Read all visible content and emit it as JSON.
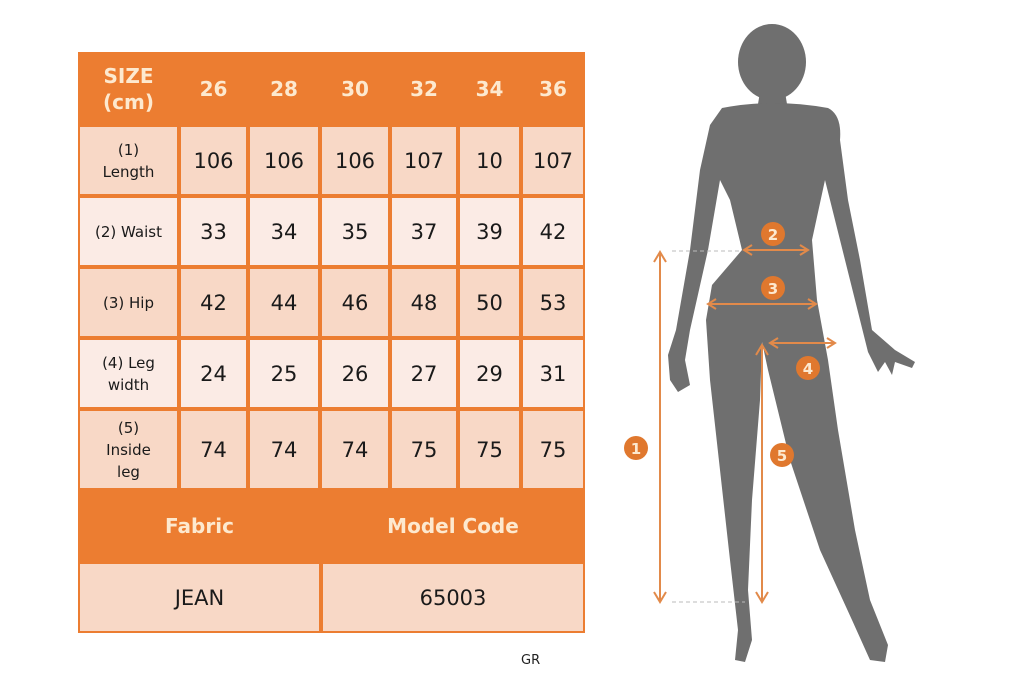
{
  "table": {
    "header": {
      "label_line1": "SIZE",
      "label_line2": "(cm)",
      "sizes": [
        "26",
        "28",
        "30",
        "32",
        "34",
        "36"
      ]
    },
    "rows": [
      {
        "label": "(1) Length",
        "values": [
          "106",
          "106",
          "106",
          "107",
          "10",
          "107"
        ]
      },
      {
        "label": "(2) Waist",
        "values": [
          "33",
          "34",
          "35",
          "37",
          "39",
          "42"
        ]
      },
      {
        "label": "(3) Hip",
        "values": [
          "42",
          "44",
          "46",
          "48",
          "50",
          "53"
        ]
      },
      {
        "label": "(4) Leg width",
        "values": [
          "24",
          "25",
          "26",
          "27",
          "29",
          "31"
        ]
      },
      {
        "label": "(5) Inside leg",
        "values": [
          "74",
          "74",
          "74",
          "75",
          "75",
          "75"
        ]
      }
    ],
    "footer": {
      "fabric_label": "Fabric",
      "model_code_label": "Model Code",
      "fabric_value": "JEAN",
      "model_code_value": "65003"
    }
  },
  "figure": {
    "markers": [
      "1",
      "2",
      "3",
      "4",
      "5"
    ]
  },
  "watermark": "GR",
  "colors": {
    "accent": "#ec7d31",
    "header_text": "#fde9cf",
    "row_dark": "#f8d8c6",
    "row_light": "#fbebe5",
    "silhouette": "#6f6f6f"
  }
}
